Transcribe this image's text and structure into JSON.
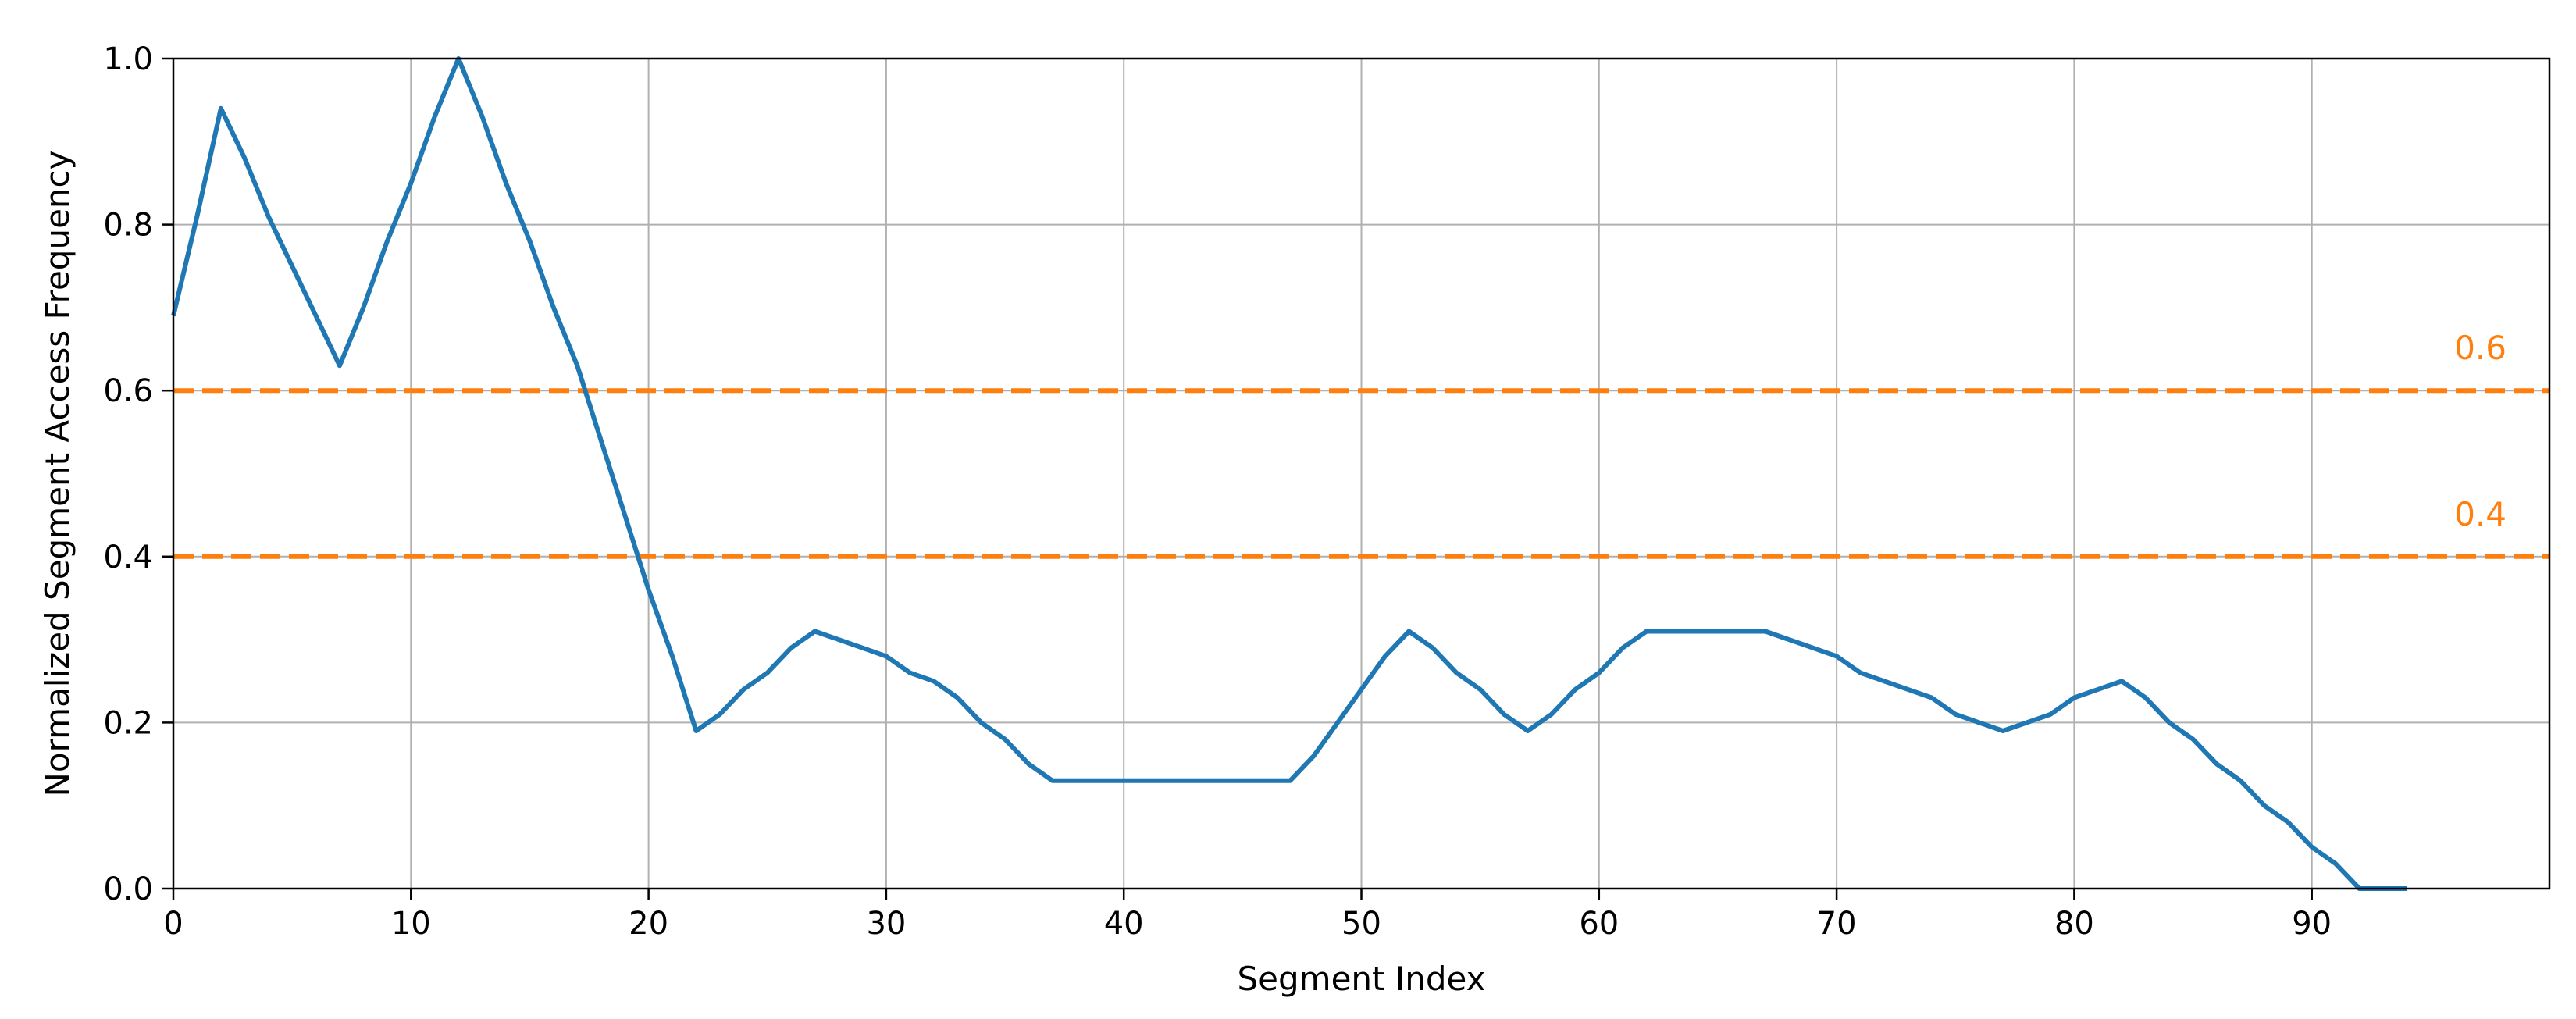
{
  "chart_data": {
    "type": "line",
    "title": "",
    "xlabel": "Segment Index",
    "ylabel": "Normalized Segment Access Frequency",
    "xlim": [
      0,
      100
    ],
    "ylim": [
      0,
      1.0
    ],
    "x_ticks": [
      0,
      10,
      20,
      30,
      40,
      50,
      60,
      70,
      80,
      90
    ],
    "x_tick_labels": [
      "0",
      "10",
      "20",
      "30",
      "40",
      "50",
      "60",
      "70",
      "80",
      "90"
    ],
    "y_ticks": [
      0,
      0.2,
      0.4,
      0.6,
      0.8,
      1.0
    ],
    "y_tick_labels": [
      "0.0",
      "0.2",
      "0.4",
      "0.6",
      "0.8",
      "1.0"
    ],
    "grid": true,
    "legend": "none",
    "series": [
      {
        "color": "#1f77b4",
        "x": [
          0,
          1,
          2,
          3,
          4,
          5,
          6,
          7,
          8,
          9,
          10,
          11,
          12,
          13,
          14,
          15,
          16,
          17,
          18,
          19,
          20,
          21,
          22,
          23,
          24,
          25,
          26,
          27,
          28,
          29,
          30,
          31,
          32,
          33,
          34,
          35,
          36,
          37,
          38,
          39,
          40,
          41,
          42,
          43,
          44,
          45,
          46,
          47,
          48,
          49,
          50,
          51,
          52,
          53,
          54,
          55,
          56,
          57,
          58,
          59,
          60,
          61,
          62,
          63,
          64,
          65,
          66,
          67,
          68,
          69,
          70,
          71,
          72,
          73,
          74,
          75,
          76,
          77,
          78,
          79,
          80,
          81,
          82,
          83,
          84,
          85,
          86,
          87,
          88,
          89,
          90,
          91,
          92,
          93,
          94
        ],
        "y": [
          0.69,
          0.81,
          0.94,
          0.88,
          0.81,
          0.75,
          0.69,
          0.63,
          0.7,
          0.78,
          0.85,
          0.93,
          1.0,
          0.93,
          0.85,
          0.78,
          0.7,
          0.63,
          0.54,
          0.45,
          0.36,
          0.28,
          0.19,
          0.21,
          0.24,
          0.26,
          0.29,
          0.31,
          0.3,
          0.29,
          0.28,
          0.26,
          0.25,
          0.23,
          0.2,
          0.18,
          0.15,
          0.13,
          0.13,
          0.13,
          0.13,
          0.13,
          0.13,
          0.13,
          0.13,
          0.13,
          0.13,
          0.13,
          0.16,
          0.2,
          0.24,
          0.28,
          0.31,
          0.29,
          0.26,
          0.24,
          0.21,
          0.19,
          0.21,
          0.24,
          0.26,
          0.29,
          0.31,
          0.31,
          0.31,
          0.31,
          0.31,
          0.31,
          0.3,
          0.29,
          0.28,
          0.26,
          0.25,
          0.24,
          0.23,
          0.21,
          0.2,
          0.19,
          0.2,
          0.21,
          0.23,
          0.24,
          0.25,
          0.23,
          0.2,
          0.18,
          0.15,
          0.13,
          0.1,
          0.08,
          0.05,
          0.03,
          0.0,
          0.0,
          0.0
        ]
      }
    ],
    "reference_lines": [
      {
        "y": 0.6,
        "label": "0.6",
        "color": "#ff7f0e",
        "style": "dashed"
      },
      {
        "y": 0.4,
        "label": "0.4",
        "color": "#ff7f0e",
        "style": "dashed"
      }
    ]
  }
}
